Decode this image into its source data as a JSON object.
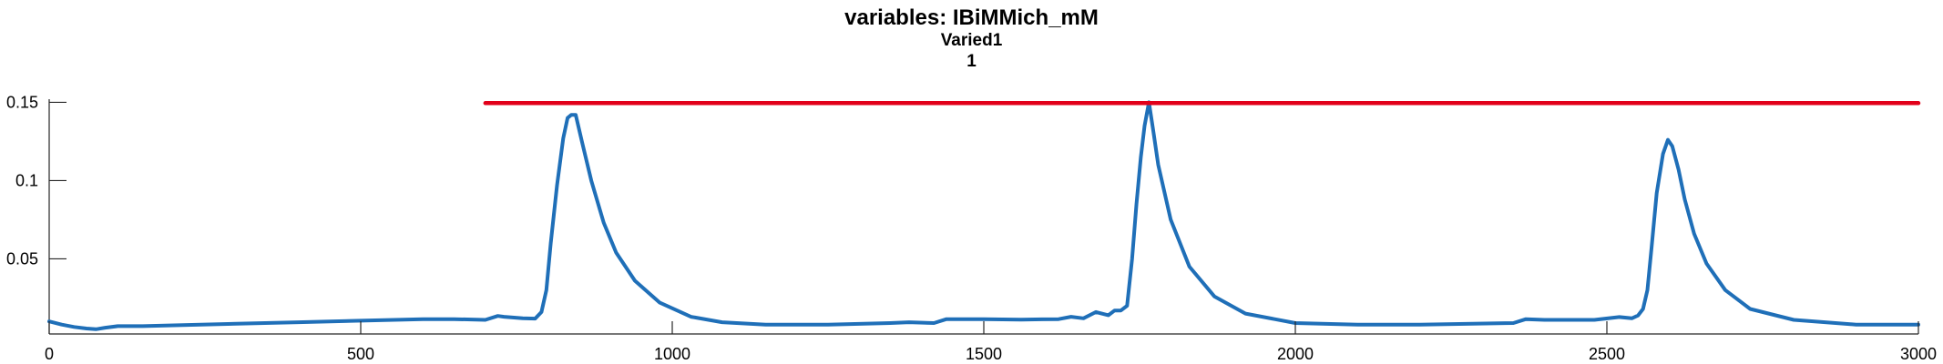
{
  "figure": {
    "title": "variables: IBiMMich_mM",
    "subtitle": "Varied1",
    "run_label": "1"
  },
  "chart_data": {
    "type": "line",
    "title": "variables: IBiMMich_mM",
    "subtitle_lines": [
      "Varied1",
      "1"
    ],
    "xlabel": "",
    "ylabel": "",
    "xlim": [
      0,
      3000
    ],
    "ylim": [
      0.002,
      0.152
    ],
    "xticks": [
      0,
      500,
      1000,
      1500,
      2000,
      2500,
      3000
    ],
    "xtick_labels": [
      "0",
      "500",
      "1000",
      "1500",
      "2000",
      "2500",
      "3000"
    ],
    "yticks": [
      0.05,
      0.1,
      0.15
    ],
    "ytick_labels": [
      "0.05",
      "0.1",
      "0.15"
    ],
    "grid": false,
    "series": [
      {
        "color": "#1f6fb8",
        "x": [
          0,
          20,
          40,
          60,
          75,
          90,
          110,
          150,
          200,
          300,
          400,
          500,
          600,
          650,
          700,
          720,
          730,
          760,
          780,
          790,
          798,
          805,
          815,
          825,
          832,
          838,
          845,
          855,
          870,
          890,
          910,
          940,
          980,
          1030,
          1080,
          1150,
          1250,
          1350,
          1380,
          1420,
          1440,
          1500,
          1560,
          1620,
          1640,
          1660,
          1680,
          1700,
          1710,
          1720,
          1730,
          1738,
          1745,
          1752,
          1758,
          1765,
          1772,
          1780,
          1800,
          1830,
          1870,
          1920,
          2000,
          2100,
          2200,
          2350,
          2370,
          2400,
          2480,
          2520,
          2540,
          2550,
          2558,
          2565,
          2572,
          2580,
          2590,
          2598,
          2605,
          2615,
          2625,
          2640,
          2660,
          2690,
          2730,
          2800,
          2900,
          3000
        ],
        "y": [
          0.01,
          0.008,
          0.0065,
          0.0055,
          0.005,
          0.006,
          0.007,
          0.007,
          0.0075,
          0.0085,
          0.0095,
          0.0105,
          0.0115,
          0.0115,
          0.011,
          0.0135,
          0.013,
          0.012,
          0.0118,
          0.016,
          0.03,
          0.06,
          0.097,
          0.127,
          0.14,
          0.142,
          0.142,
          0.125,
          0.1,
          0.073,
          0.054,
          0.036,
          0.022,
          0.013,
          0.0095,
          0.008,
          0.008,
          0.009,
          0.0095,
          0.009,
          0.0115,
          0.0115,
          0.0112,
          0.0115,
          0.013,
          0.012,
          0.016,
          0.014,
          0.017,
          0.017,
          0.02,
          0.05,
          0.085,
          0.115,
          0.135,
          0.15,
          0.132,
          0.11,
          0.075,
          0.045,
          0.026,
          0.015,
          0.009,
          0.008,
          0.008,
          0.009,
          0.0115,
          0.011,
          0.011,
          0.0128,
          0.012,
          0.0138,
          0.018,
          0.03,
          0.058,
          0.092,
          0.117,
          0.126,
          0.122,
          0.107,
          0.088,
          0.066,
          0.047,
          0.03,
          0.018,
          0.011,
          0.008,
          0.008
        ]
      },
      {
        "color": "#e2001a",
        "x": [
          700,
          3000
        ],
        "y": [
          0.1495,
          0.1495
        ]
      }
    ]
  }
}
